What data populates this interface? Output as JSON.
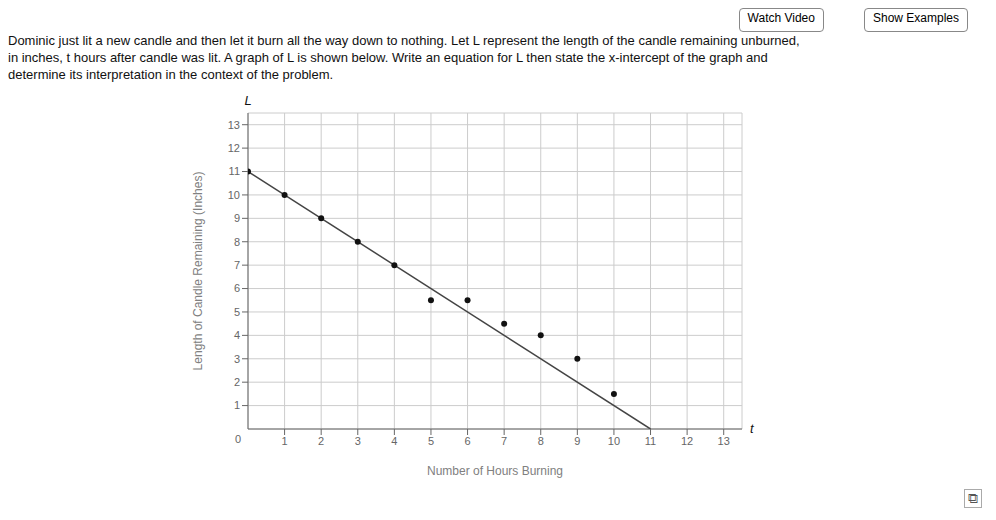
{
  "chart_data": {
    "type": "scatter",
    "title": [
      "Dominic just lit a new candle and then let it burn all the way down to nothing. Let L represent the length of the candle remaining unburned,",
      "in inches, t hours after candle was lit. A graph of L is shown below. Write an equation for L then state the x-intercept of the graph and",
      "determine its interpretation in the context of the problem."
    ],
    "xlabel": "Number of Hours Burning",
    "ylabel": "Length of Candle Remaining (Inches)",
    "annotations": [
      "Watch Video",
      "Show Examples",
      "t",
      "L",
      "0",
      "⧉"
    ],
    "series": [
      {
        "type": "line",
        "color": "#444444",
        "x": [
          0,
          11
        ],
        "values": [
          11,
          0
        ]
      },
      {
        "type": "scatter",
        "color": "#111111",
        "x": [
          1,
          2,
          3,
          4,
          5,
          6,
          7,
          8,
          9,
          10,
          0
        ],
        "values": [
          10,
          9,
          8,
          7,
          5.5,
          5.5,
          4.5,
          4,
          3,
          1.5,
          11
        ]
      }
    ],
    "xlim": [
      0,
      13.5
    ],
    "ylim": [
      0,
      13.5
    ],
    "xticks": [
      1,
      2,
      3,
      4,
      5,
      6,
      7,
      8,
      9,
      10,
      11,
      12,
      13
    ],
    "yticks": [
      1,
      2,
      3,
      4,
      5,
      6,
      7,
      8,
      9,
      10,
      11,
      12,
      13
    ],
    "grid": true
  }
}
